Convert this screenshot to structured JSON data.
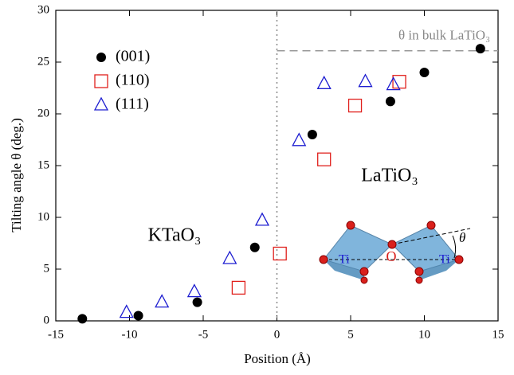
{
  "chart_data": {
    "type": "scatter",
    "xlabel": "Position (Å)",
    "ylabel": "Tilting angle θ (deg.)",
    "xlim": [
      -15,
      15
    ],
    "ylim": [
      0,
      30
    ],
    "xticks": [
      -15,
      -10,
      -5,
      0,
      5,
      10,
      15
    ],
    "yticks": [
      0,
      5,
      10,
      15,
      20,
      25,
      30
    ],
    "legend": "upper left",
    "series": [
      {
        "name": "(001)",
        "color": "#000000",
        "marker": "circle",
        "x": [
          -13.2,
          -9.4,
          -5.4,
          -1.5,
          2.4,
          7.7,
          10.0,
          13.8
        ],
        "values": [
          0.2,
          0.5,
          1.8,
          7.1,
          18.0,
          21.2,
          24.0,
          26.3
        ]
      },
      {
        "name": "(110)",
        "color": "#e0201c",
        "marker": "square",
        "x": [
          -2.6,
          0.2,
          3.2,
          5.3,
          8.3
        ],
        "values": [
          3.2,
          6.5,
          15.6,
          20.8,
          23.1
        ]
      },
      {
        "name": "(111)",
        "color": "#1c1cd0",
        "marker": "triangle",
        "x": [
          -10.2,
          -7.8,
          -5.6,
          -3.2,
          -1.0,
          1.5,
          3.2,
          6.0,
          7.9
        ],
        "values": [
          0.8,
          1.8,
          2.8,
          6.0,
          9.7,
          17.4,
          22.9,
          23.1,
          22.8
        ]
      }
    ],
    "hline": {
      "value": 26.1,
      "label": "θ in bulk LaTiO₃"
    },
    "vline": 0,
    "annotations": [
      "KTaO₃",
      "LaTiO₃"
    ],
    "inset_labels": [
      "Ti",
      "O",
      "Ti",
      "θ"
    ]
  }
}
